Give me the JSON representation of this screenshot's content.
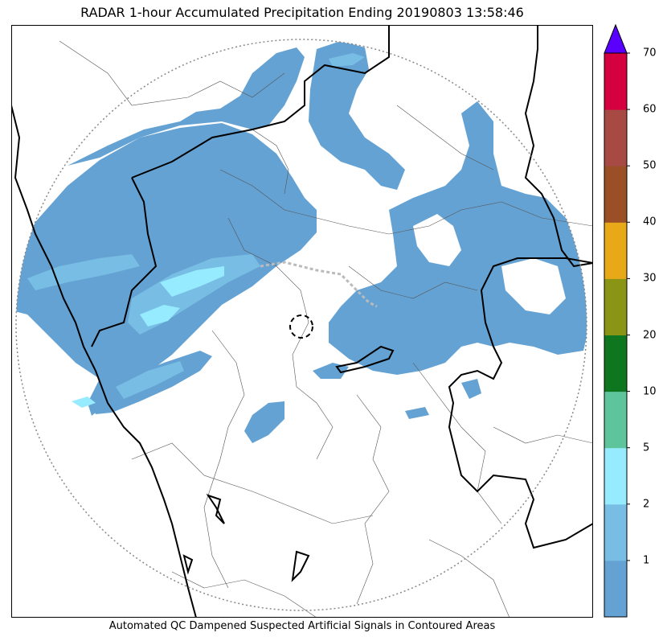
{
  "title": "RADAR 1-hour Accumulated Precipitation Ending 20190803 13:58:46",
  "caption": "Automated QC Dampened Suspected Artificial Signals in Contoured Areas",
  "colorbar": {
    "extend": "max",
    "extend_color": "#5a00ff",
    "bins": [
      {
        "color": "#64a2d3"
      },
      {
        "color": "#77bde4"
      },
      {
        "color": "#96ecfe"
      },
      {
        "color": "#5ec49c"
      },
      {
        "color": "#0f7620"
      },
      {
        "color": "#8b9515"
      },
      {
        "color": "#e7a918"
      },
      {
        "color": "#9a4f26"
      },
      {
        "color": "#a74a44"
      },
      {
        "color": "#d5003f"
      }
    ],
    "ticks": [
      "1",
      "2",
      "5",
      "10",
      "20",
      "30",
      "40",
      "50",
      "60",
      "70"
    ]
  },
  "map": {
    "range_ring": "dotted-gray",
    "radar_site": "dashed-circle",
    "precip_colors": {
      "light": "#64a2d3",
      "mid": "#77bde4",
      "heavy": "#96ecfe"
    }
  }
}
